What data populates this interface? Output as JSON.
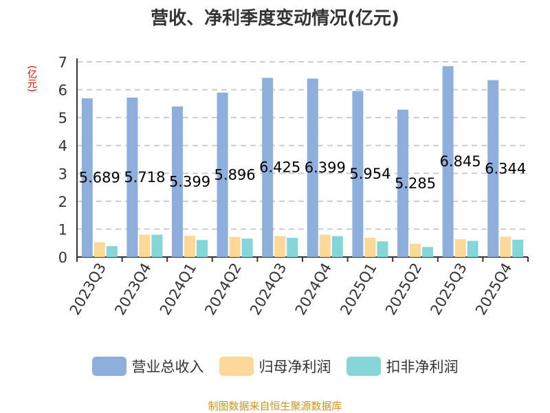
{
  "chart_data": {
    "type": "bar",
    "title": "营收、净利季度变动情况(亿元)",
    "ylabel": "(亿元)",
    "ylim": [
      0,
      7
    ],
    "yticks": [
      0,
      1,
      2,
      3,
      4,
      5,
      6,
      7
    ],
    "grid": true,
    "legend_position": "bottom",
    "categories": [
      "2023Q3",
      "2023Q4",
      "2024Q1",
      "2024Q2",
      "2024Q3",
      "2024Q4",
      "2025Q1",
      "2025Q2",
      "2025Q3",
      "2025Q4"
    ],
    "series": [
      {
        "name": "营业总收入",
        "color": "#8eaedb",
        "values": [
          5.689,
          5.718,
          5.399,
          5.896,
          6.425,
          6.399,
          5.954,
          5.285,
          6.845,
          6.344
        ],
        "labels": [
          "5.689",
          "5.718",
          "5.399",
          "5.896",
          "6.425",
          "6.399",
          "5.954",
          "5.285",
          "6.845",
          "6.344"
        ]
      },
      {
        "name": "归母净利润",
        "color": "#fed898",
        "values": [
          0.53,
          0.8,
          0.76,
          0.72,
          0.75,
          0.8,
          0.69,
          0.47,
          0.64,
          0.73
        ]
      },
      {
        "name": "扣非净利润",
        "color": "#86d5d8",
        "values": [
          0.39,
          0.8,
          0.61,
          0.66,
          0.69,
          0.75,
          0.56,
          0.36,
          0.58,
          0.62
        ]
      }
    ]
  },
  "source": "制图数据来自恒生聚源数据库"
}
